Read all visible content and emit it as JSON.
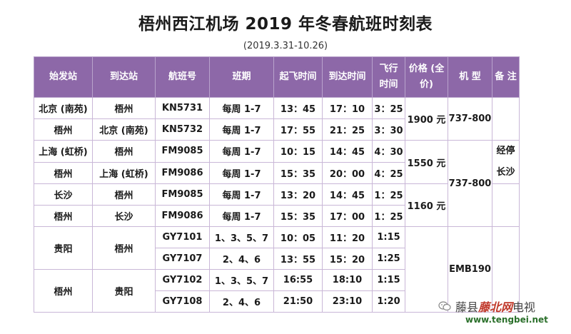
{
  "title": "梧州西江机场 2019 年冬春航班时刻表",
  "subtitle": "(2019.3.31-10.26)",
  "headers": [
    "始发站",
    "到达站",
    "航班号",
    "班期",
    "起飞时间",
    "到达时间",
    "飞行时间",
    "价格 (全价)",
    "机 型",
    "备 注"
  ],
  "rows": [
    {
      "from": "北京 (南苑)",
      "to": "梧州",
      "flight": "KN5731",
      "days": "每周 1-7",
      "dep": "13：45",
      "arr": "17：10",
      "dur": "3：25"
    },
    {
      "from": "梧州",
      "to": "北京 (南苑)",
      "flight": "KN5732",
      "days": "每周 1-7",
      "dep": "17：55",
      "arr": "21：25",
      "dur": "3：30"
    },
    {
      "from": "上海 (虹桥)",
      "to": "梧州",
      "flight": "FM9085",
      "days": "每周 1-7",
      "dep": "10：15",
      "arr": "14：45",
      "dur": "4：30"
    },
    {
      "from": "梧州",
      "to": "上海 (虹桥)",
      "flight": "FM9086",
      "days": "每周 1-7",
      "dep": "15：35",
      "arr": "20：00",
      "dur": "4：25"
    },
    {
      "from": "长沙",
      "to": "梧州",
      "flight": "FM9085",
      "days": "每周 1-7",
      "dep": "13：20",
      "arr": "14：45",
      "dur": "1：25"
    },
    {
      "from": "梧州",
      "to": "长沙",
      "flight": "FM9086",
      "days": "每周 1-7",
      "dep": "15：35",
      "arr": "17：00",
      "dur": "1：25"
    },
    {
      "flight": "GY7101",
      "days": "1、3、5、7",
      "dep": "10：05",
      "arr": "11：20",
      "dur": "1:15"
    },
    {
      "flight": "GY7107",
      "days": "2、4、6",
      "dep": "13：55",
      "arr": "15：20",
      "dur": "1:25"
    },
    {
      "flight": "GY7102",
      "days": "1、3、5、7",
      "dep": "16:55",
      "arr": "18:10",
      "dur": "1:15"
    },
    {
      "flight": "GY7108",
      "days": "2、4、6",
      "dep": "21:50",
      "arr": "23:10",
      "dur": "1:20"
    }
  ],
  "merged": {
    "guiyang_from": "贵阳",
    "guiyang_to": "梧州",
    "wuzhou_from": "梧州",
    "wuzhou_to": "贵阳",
    "price_beijing": "1900 元",
    "price_shanghai": "1550 元",
    "price_changsha": "1160 元",
    "type_beijing": "737-800",
    "type_shanghai_changsha": "737-800",
    "type_guiyang": "EMB190",
    "note_line1": "经停",
    "note_line2": "长沙"
  },
  "watermark": {
    "name": "藤县",
    "brand": "藤北网",
    "suffix": "电视",
    "url": "www.tengbei.net",
    "icon": "wechat-icon"
  }
}
